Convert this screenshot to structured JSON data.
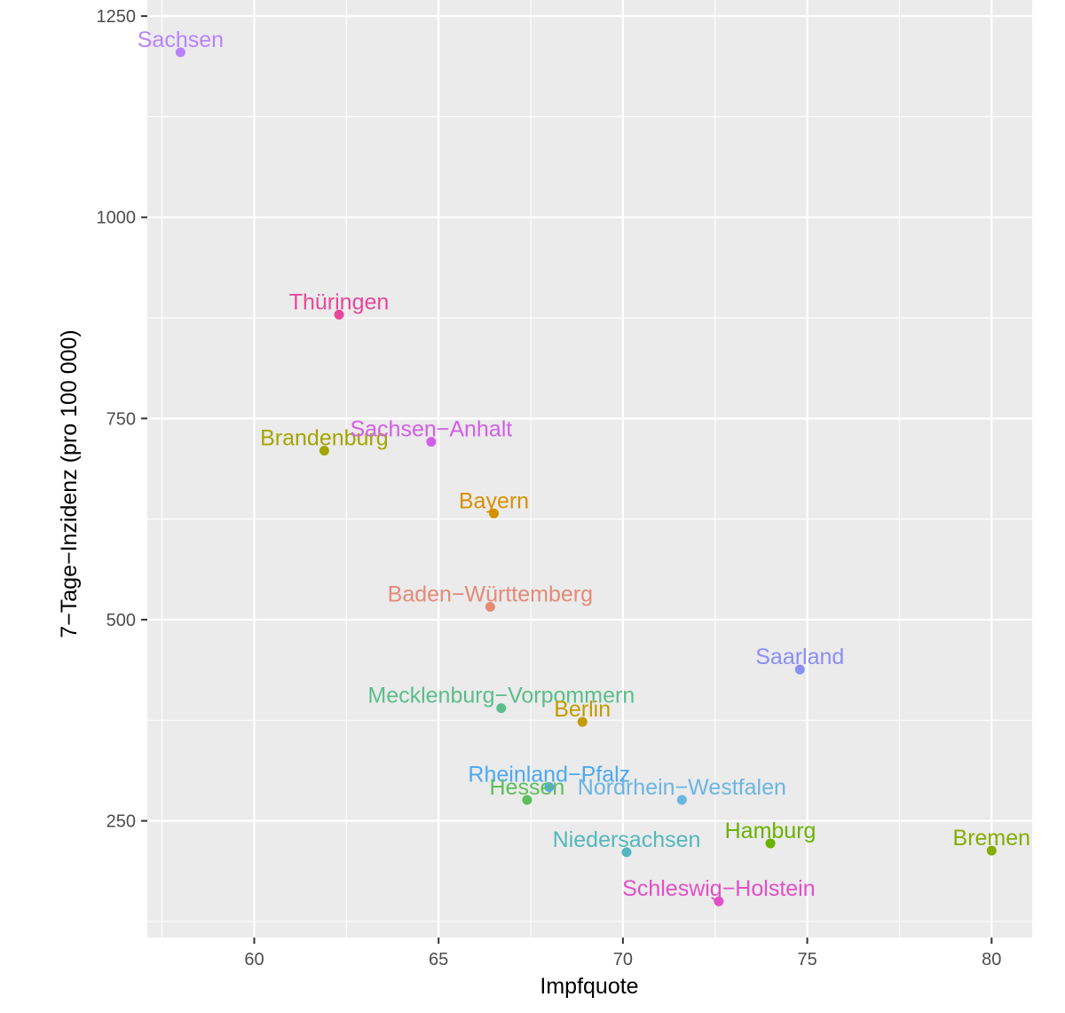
{
  "chart_data": {
    "type": "scatter",
    "title": "",
    "xlabel": "Impfquote",
    "ylabel": "7−Tage−Inzidenz (pro 100 000)",
    "xlim": [
      57.1,
      81.1
    ],
    "ylim": [
      105,
      1270
    ],
    "x_ticks": [
      60,
      65,
      70,
      75,
      80
    ],
    "x_tick_labels": [
      "60",
      "65",
      "70",
      "75",
      "80"
    ],
    "y_ticks": [
      250,
      500,
      750,
      1000,
      1250
    ],
    "y_tick_labels": [
      "250",
      "500",
      "750",
      "1000",
      "1250"
    ],
    "grid": true,
    "legend": "none",
    "points": [
      {
        "label": "Sachsen",
        "x": 58.0,
        "y": 1205,
        "color": "#B983FF"
      },
      {
        "label": "Thüringen",
        "x": 62.3,
        "y": 879,
        "color": "#E7479B"
      },
      {
        "label": "Brandenburg",
        "x": 61.9,
        "y": 710,
        "color": "#A3A500"
      },
      {
        "label": "Sachsen−Anhalt",
        "x": 64.8,
        "y": 721,
        "color": "#D35FE8"
      },
      {
        "label": "Bayern",
        "x": 66.5,
        "y": 632,
        "color": "#D89000"
      },
      {
        "label": "Baden−Württemberg",
        "x": 66.4,
        "y": 516,
        "color": "#E58A77"
      },
      {
        "label": "Saarland",
        "x": 74.8,
        "y": 438,
        "color": "#8A8EF5"
      },
      {
        "label": "Mecklenburg−Vorpommern",
        "x": 66.7,
        "y": 390,
        "color": "#5BBE8B"
      },
      {
        "label": "Berlin",
        "x": 68.9,
        "y": 373,
        "color": "#C49A00"
      },
      {
        "label": "Rheinland−Pfalz",
        "x": 68.0,
        "y": 292,
        "color": "#4EA9EF"
      },
      {
        "label": "Hessen",
        "x": 67.4,
        "y": 276,
        "color": "#5CBE5A"
      },
      {
        "label": "Nordrhein−Westfalen",
        "x": 71.6,
        "y": 276,
        "color": "#6BB5E3"
      },
      {
        "label": "Hamburg",
        "x": 74.0,
        "y": 222,
        "color": "#6BB100"
      },
      {
        "label": "Bremen",
        "x": 80.0,
        "y": 213,
        "color": "#86AC00"
      },
      {
        "label": "Niedersachsen",
        "x": 70.1,
        "y": 211,
        "color": "#53B8BE"
      },
      {
        "label": "Schleswig−Holstein",
        "x": 72.6,
        "y": 150,
        "color": "#E24FC8"
      }
    ]
  }
}
